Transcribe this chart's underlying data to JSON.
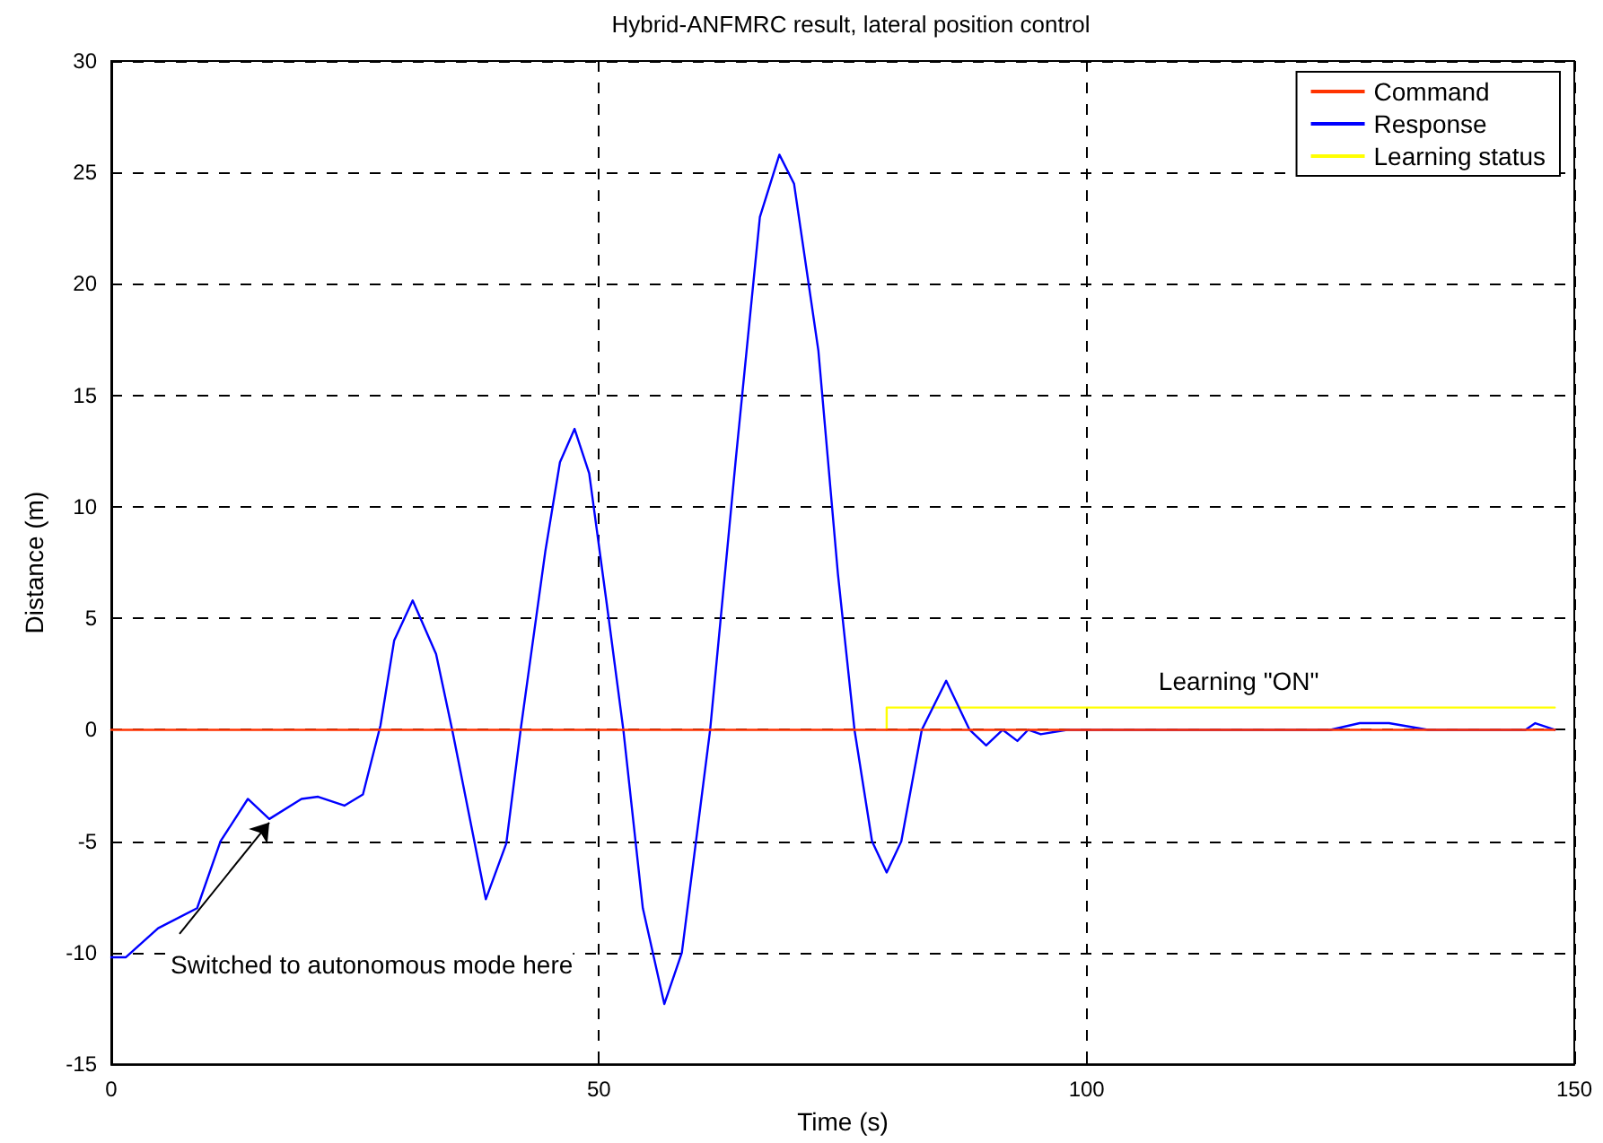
{
  "chart_data": {
    "type": "line",
    "title": "Hybrid-ANFMRC result, lateral position control",
    "xlabel": "Time (s)",
    "ylabel": "Distance (m)",
    "xlim": [
      0,
      150
    ],
    "xticks": [
      0,
      50,
      100,
      150
    ],
    "ylim": [
      -15,
      30
    ],
    "yticks": [
      -15,
      -10,
      -5,
      0,
      5,
      10,
      15,
      20,
      25,
      30
    ],
    "grid": true,
    "legend": "top right",
    "marker": "none",
    "line_style": "solid",
    "annotations": [
      {
        "text": "Switched to autonomous mode here",
        "x": 16.2,
        "y": -4
      },
      {
        "text": "Learning \"ON\"",
        "x": 115.6,
        "y": 1
      }
    ],
    "series": [
      {
        "name": "Command",
        "color": "#ff3300",
        "x": [
          0,
          148
        ],
        "values": [
          0,
          0
        ]
      },
      {
        "name": "Response",
        "color": "#0000ff",
        "x": [
          0,
          1.5,
          4.8,
          8.8,
          11.2,
          14,
          16.2,
          19.5,
          21.2,
          23.9,
          25.8,
          27.6,
          29,
          30.9,
          33.3,
          35,
          38.4,
          40.5,
          42,
          44.5,
          46,
          47.5,
          49,
          51,
          52.5,
          54.5,
          56.7,
          58.5,
          61.4,
          64,
          66.5,
          68.5,
          70,
          72.5,
          74.5,
          76.2,
          78,
          79.5,
          81,
          83.1,
          85.6,
          88,
          89.7,
          91.4,
          92.9,
          94,
          95.3,
          98,
          105,
          115,
          125,
          128,
          131,
          135,
          145,
          146,
          148
        ],
        "values": [
          -10.2,
          -10.2,
          -8.9,
          -8,
          -5,
          -3.1,
          -4,
          -3.1,
          -3,
          -3.4,
          -2.9,
          0.2,
          4,
          5.8,
          3.4,
          -0.1,
          -7.6,
          -5.1,
          0.1,
          8,
          12,
          13.5,
          11.5,
          5,
          0,
          -8,
          -12.3,
          -10,
          0,
          12,
          23,
          25.8,
          24.5,
          17,
          7,
          0,
          -5,
          -6.4,
          -5,
          0,
          2.2,
          0,
          -0.7,
          0,
          -0.5,
          0,
          -0.2,
          0,
          0,
          0,
          0,
          0.3,
          0.3,
          0,
          0,
          0.3,
          0
        ]
      },
      {
        "name": "Learning status",
        "color": "#ffff00",
        "x": [
          79.5,
          79.5,
          148
        ],
        "values": [
          0,
          1,
          1
        ]
      }
    ]
  }
}
